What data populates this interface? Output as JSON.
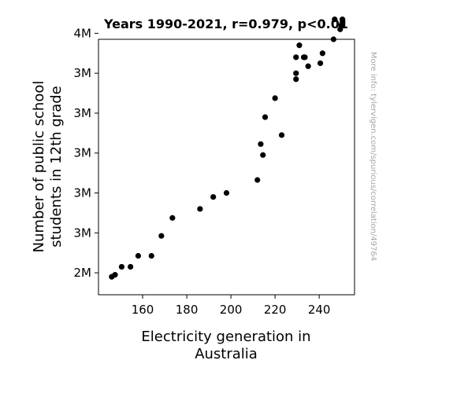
{
  "chart_data": {
    "type": "scatter",
    "title": "Years 1990-2021, r=0.979, p<0.01",
    "xlabel_lines": [
      "Electricity generation in",
      "Australia"
    ],
    "ylabel_lines": [
      "Number of public school",
      "students in 12th grade"
    ],
    "watermark": "More info: tylervigen.com/spurious/correlation/49764",
    "xlim": [
      140,
      256
    ],
    "ylim": [
      2290000,
      3570000
    ],
    "x_ticks": [
      {
        "value": 160,
        "label": "160"
      },
      {
        "value": 180,
        "label": "180"
      },
      {
        "value": 200,
        "label": "200"
      },
      {
        "value": 220,
        "label": "220"
      },
      {
        "value": 240,
        "label": "240"
      }
    ],
    "y_ticks": [
      {
        "value": 2400000,
        "label": "2M"
      },
      {
        "value": 2600000,
        "label": "3M"
      },
      {
        "value": 2800000,
        "label": "3M"
      },
      {
        "value": 3000000,
        "label": "3M"
      },
      {
        "value": 3200000,
        "label": "3M"
      },
      {
        "value": 3400000,
        "label": "3M"
      },
      {
        "value": 3600000,
        "label": "4M"
      }
    ],
    "point_color": "#000000",
    "points": [
      {
        "x": 146.0,
        "y": 2380000
      },
      {
        "x": 147.5,
        "y": 2390000
      },
      {
        "x": 150.5,
        "y": 2430000
      },
      {
        "x": 154.5,
        "y": 2430000
      },
      {
        "x": 158.0,
        "y": 2485000
      },
      {
        "x": 164.0,
        "y": 2485000
      },
      {
        "x": 168.5,
        "y": 2585000
      },
      {
        "x": 173.5,
        "y": 2675000
      },
      {
        "x": 186.0,
        "y": 2720000
      },
      {
        "x": 192.0,
        "y": 2780000
      },
      {
        "x": 198.0,
        "y": 2800000
      },
      {
        "x": 212.0,
        "y": 2865000
      },
      {
        "x": 213.5,
        "y": 3045000
      },
      {
        "x": 214.5,
        "y": 2990000
      },
      {
        "x": 215.5,
        "y": 3180000
      },
      {
        "x": 220.0,
        "y": 3275000
      },
      {
        "x": 223.0,
        "y": 3090000
      },
      {
        "x": 229.5,
        "y": 3370000
      },
      {
        "x": 229.5,
        "y": 3400000
      },
      {
        "x": 229.5,
        "y": 3480000
      },
      {
        "x": 231.0,
        "y": 3540000
      },
      {
        "x": 233.0,
        "y": 3480000
      },
      {
        "x": 233.5,
        "y": 3480000
      },
      {
        "x": 235.0,
        "y": 3435000
      },
      {
        "x": 240.5,
        "y": 3450000
      },
      {
        "x": 241.5,
        "y": 3500000
      },
      {
        "x": 246.5,
        "y": 3570000
      },
      {
        "x": 247.0,
        "y": 3670000
      },
      {
        "x": 249.5,
        "y": 3620000
      },
      {
        "x": 250.0,
        "y": 3640000
      },
      {
        "x": 250.5,
        "y": 3655000
      },
      {
        "x": 250.5,
        "y": 3670000
      }
    ]
  }
}
